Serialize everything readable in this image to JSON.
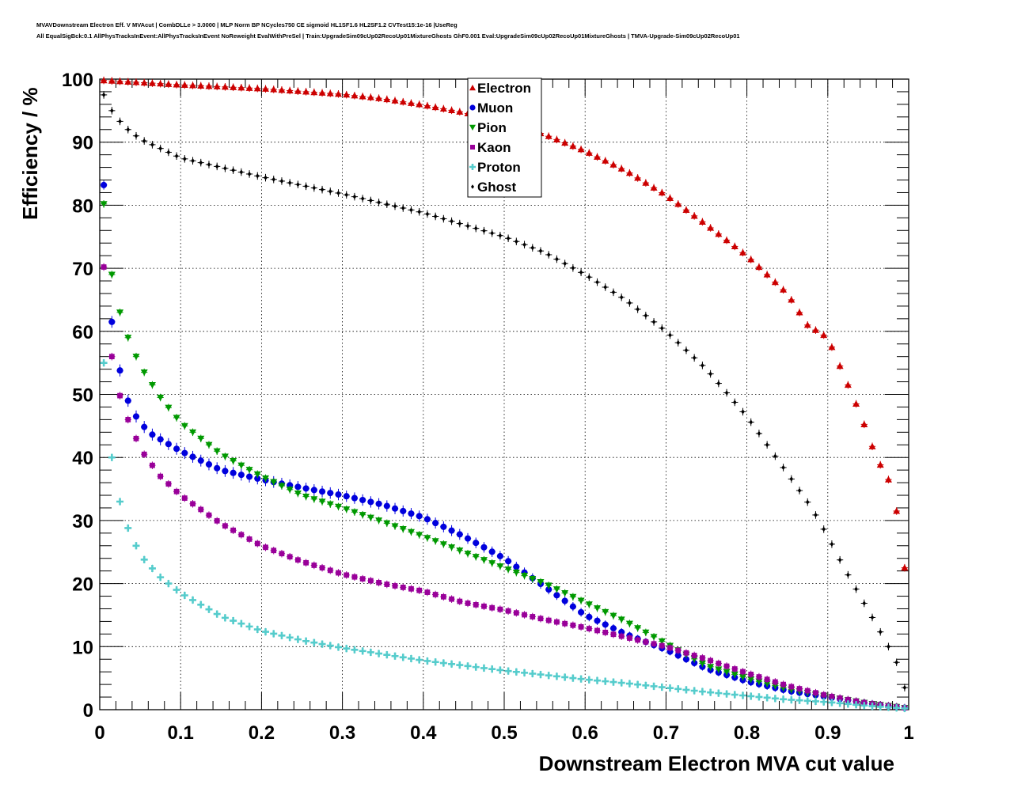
{
  "header": {
    "line1": "MVAVDownstream Electron Eff. V MVAcut | CombDLLe > 3.0000 | MLP Norm BP NCycles750 CE sigmoid HL1SF1.6 HL2SF1.2 CVTest15:1e-16 |UseReg",
    "line2": "All EqualSigBck:0.1 AllPhysTracksInEvent:AllPhysTracksInEvent NoReweight EvalWithPreSel | Train:UpgradeSim09cUp02RecoUp01MixtureGhosts GhF0.001 Eval:UpgradeSim09cUp02RecoUp01MixtureGhosts | TMVA-Upgrade-Sim09cUp02RecoUp01"
  },
  "chart_data": {
    "type": "scatter",
    "xlabel": "Downstream Electron MVA cut value",
    "ylabel": "Efficiency / %",
    "xlim": [
      0,
      1
    ],
    "ylim": [
      0,
      100
    ],
    "x_ticks": [
      "0",
      "0.1",
      "0.2",
      "0.3",
      "0.4",
      "0.5",
      "0.6",
      "0.7",
      "0.8",
      "0.9",
      "1"
    ],
    "y_ticks": [
      "0",
      "10",
      "20",
      "30",
      "40",
      "50",
      "60",
      "70",
      "80",
      "90",
      "100"
    ],
    "grid": true,
    "legend_position": "top-center",
    "x_start": 0.005,
    "x_step": 0.01,
    "series": [
      {
        "name": "Electron",
        "color": "#cc0000",
        "marker": "triangle-up",
        "knots_x": [
          0.005,
          0.1,
          0.2,
          0.3,
          0.35,
          0.4,
          0.45,
          0.5,
          0.55,
          0.6,
          0.65,
          0.7,
          0.75,
          0.8,
          0.85,
          0.875,
          0.9,
          0.92,
          0.94,
          0.96,
          0.975,
          0.985,
          0.995
        ],
        "knots_y": [
          99.8,
          99.1,
          98.5,
          97.6,
          96.9,
          95.9,
          94.7,
          93.2,
          91.2,
          88.6,
          85.5,
          81.6,
          76.9,
          72.0,
          66.0,
          61.0,
          59.0,
          53.0,
          47.0,
          40.0,
          36.5,
          31.5,
          22.5
        ]
      },
      {
        "name": "Muon",
        "color": "#0000dd",
        "marker": "circle",
        "knots_x": [
          0.005,
          0.015,
          0.025,
          0.035,
          0.045,
          0.06,
          0.08,
          0.1,
          0.15,
          0.2,
          0.25,
          0.3,
          0.35,
          0.4,
          0.45,
          0.5,
          0.55,
          0.6,
          0.65,
          0.7,
          0.75,
          0.8,
          0.85,
          0.9,
          0.95,
          0.995
        ],
        "knots_y": [
          83.2,
          61.5,
          53.8,
          49.0,
          46.5,
          44.0,
          42.5,
          41.0,
          38.0,
          36.5,
          35.2,
          34.0,
          32.5,
          30.5,
          27.5,
          24.0,
          19.5,
          15.0,
          12.0,
          9.5,
          6.5,
          4.5,
          3.0,
          2.0,
          1.0,
          0.3
        ]
      },
      {
        "name": "Pion",
        "color": "#009900",
        "marker": "triangle-down",
        "knots_x": [
          0.005,
          0.015,
          0.025,
          0.035,
          0.045,
          0.055,
          0.075,
          0.1,
          0.15,
          0.2,
          0.25,
          0.3,
          0.35,
          0.4,
          0.45,
          0.5,
          0.55,
          0.6,
          0.65,
          0.7,
          0.75,
          0.8,
          0.85,
          0.9,
          0.95,
          0.995
        ],
        "knots_y": [
          80.2,
          69.0,
          63.0,
          59.0,
          56.0,
          53.5,
          49.5,
          45.5,
          40.5,
          37.0,
          34.0,
          32.0,
          29.8,
          27.5,
          25.0,
          22.5,
          20.0,
          17.0,
          14.0,
          10.5,
          7.0,
          5.0,
          3.3,
          2.1,
          1.0,
          0.3
        ]
      },
      {
        "name": "Kaon",
        "color": "#990099",
        "marker": "square",
        "knots_x": [
          0.005,
          0.015,
          0.025,
          0.035,
          0.045,
          0.055,
          0.075,
          0.1,
          0.15,
          0.2,
          0.25,
          0.3,
          0.35,
          0.4,
          0.45,
          0.5,
          0.55,
          0.6,
          0.65,
          0.7,
          0.75,
          0.8,
          0.85,
          0.9,
          0.95,
          0.995
        ],
        "knots_y": [
          70.2,
          56.0,
          49.8,
          46.0,
          43.0,
          40.5,
          37.0,
          34.0,
          29.5,
          26.0,
          23.5,
          21.5,
          20.0,
          18.8,
          17.0,
          15.8,
          14.3,
          13.0,
          11.5,
          10.0,
          8.0,
          5.8,
          3.8,
          2.2,
          1.0,
          0.3
        ]
      },
      {
        "name": "Proton",
        "color": "#55cccc",
        "marker": "cross",
        "knots_x": [
          0.005,
          0.015,
          0.025,
          0.035,
          0.045,
          0.055,
          0.075,
          0.1,
          0.15,
          0.2,
          0.25,
          0.3,
          0.35,
          0.4,
          0.45,
          0.5,
          0.55,
          0.6,
          0.65,
          0.7,
          0.75,
          0.8,
          0.85,
          0.9,
          0.95,
          0.995
        ],
        "knots_y": [
          55.0,
          40.0,
          33.0,
          28.8,
          26.0,
          23.8,
          21.0,
          18.5,
          14.8,
          12.5,
          11.0,
          9.8,
          8.8,
          7.8,
          7.0,
          6.2,
          5.5,
          4.8,
          4.2,
          3.5,
          2.8,
          2.2,
          1.6,
          1.2,
          0.6,
          0.2
        ]
      },
      {
        "name": "Ghost",
        "color": "#000000",
        "marker": "diamond",
        "knots_x": [
          0.005,
          0.015,
          0.025,
          0.035,
          0.05,
          0.1,
          0.2,
          0.3,
          0.4,
          0.5,
          0.55,
          0.6,
          0.65,
          0.7,
          0.75,
          0.8,
          0.85,
          0.88,
          0.9,
          0.92,
          0.94,
          0.96,
          0.975,
          0.985,
          0.995
        ],
        "knots_y": [
          97.5,
          95.0,
          93.3,
          92.0,
          90.5,
          87.5,
          84.5,
          81.8,
          78.8,
          75.0,
          72.5,
          69.0,
          65.0,
          60.0,
          54.0,
          46.5,
          37.5,
          32.0,
          27.5,
          22.5,
          18.0,
          13.5,
          10.0,
          7.5,
          3.5
        ]
      }
    ]
  }
}
